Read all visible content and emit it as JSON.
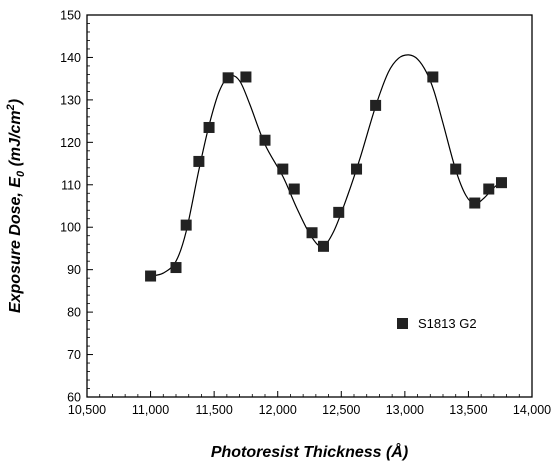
{
  "chart_data": {
    "type": "scatter",
    "title": "",
    "xlabel": "Photoresist Thickness (Å)",
    "ylabel_main": "Exposure Dose, E",
    "ylabel_sub": "0",
    "ylabel_unit_open": " (mJ/cm",
    "ylabel_unit_sup": "2",
    "ylabel_unit_close": ")",
    "xlim": [
      10500,
      14000
    ],
    "ylim": [
      60,
      150
    ],
    "x_ticks": [
      10500,
      11000,
      11500,
      12000,
      12500,
      13000,
      13500,
      14000
    ],
    "x_tick_labels": [
      "10,500",
      "11,000",
      "11,500",
      "12,000",
      "12,500",
      "13,000",
      "13,500",
      "14,000"
    ],
    "y_ticks": [
      60,
      70,
      80,
      90,
      100,
      110,
      120,
      130,
      140,
      150
    ],
    "y_tick_labels": [
      "60",
      "70",
      "80",
      "90",
      "100",
      "110",
      "120",
      "130",
      "140",
      "150"
    ],
    "grid": false,
    "legend_position": "center-right",
    "series": [
      {
        "name": "S1813 G2",
        "marker": "square",
        "color": "#222222",
        "points": [
          {
            "x": 11000,
            "y": 88.5
          },
          {
            "x": 11200,
            "y": 90.5
          },
          {
            "x": 11280,
            "y": 100.5
          },
          {
            "x": 11380,
            "y": 115.5
          },
          {
            "x": 11460,
            "y": 123.5
          },
          {
            "x": 11610,
            "y": 135.2
          },
          {
            "x": 11750,
            "y": 135.4
          },
          {
            "x": 11900,
            "y": 120.5
          },
          {
            "x": 12040,
            "y": 113.7
          },
          {
            "x": 12130,
            "y": 109.0
          },
          {
            "x": 12270,
            "y": 98.7
          },
          {
            "x": 12360,
            "y": 95.5
          },
          {
            "x": 12480,
            "y": 103.5
          },
          {
            "x": 12620,
            "y": 113.7
          },
          {
            "x": 12770,
            "y": 128.7
          },
          {
            "x": 13220,
            "y": 135.4
          },
          {
            "x": 13400,
            "y": 113.7
          },
          {
            "x": 13550,
            "y": 105.7
          },
          {
            "x": 13660,
            "y": 109.0
          },
          {
            "x": 13760,
            "y": 110.5
          }
        ]
      }
    ],
    "fit_curve": [
      {
        "x": 11000,
        "y": 88.5
      },
      {
        "x": 11100,
        "y": 89.2
      },
      {
        "x": 11200,
        "y": 92.0
      },
      {
        "x": 11280,
        "y": 99.0
      },
      {
        "x": 11380,
        "y": 113.5
      },
      {
        "x": 11460,
        "y": 124.0
      },
      {
        "x": 11540,
        "y": 132.0
      },
      {
        "x": 11620,
        "y": 135.6
      },
      {
        "x": 11700,
        "y": 134.5
      },
      {
        "x": 11780,
        "y": 129.0
      },
      {
        "x": 11900,
        "y": 119.5
      },
      {
        "x": 12040,
        "y": 112.0
      },
      {
        "x": 12150,
        "y": 104.5
      },
      {
        "x": 12260,
        "y": 98.0
      },
      {
        "x": 12350,
        "y": 95.5
      },
      {
        "x": 12440,
        "y": 99.0
      },
      {
        "x": 12550,
        "y": 107.5
      },
      {
        "x": 12650,
        "y": 116.5
      },
      {
        "x": 12770,
        "y": 128.5
      },
      {
        "x": 12870,
        "y": 136.5
      },
      {
        "x": 12950,
        "y": 139.8
      },
      {
        "x": 13030,
        "y": 140.6
      },
      {
        "x": 13100,
        "y": 139.6
      },
      {
        "x": 13170,
        "y": 136.5
      },
      {
        "x": 13230,
        "y": 132.0
      },
      {
        "x": 13300,
        "y": 124.5
      },
      {
        "x": 13400,
        "y": 113.5
      },
      {
        "x": 13480,
        "y": 107.5
      },
      {
        "x": 13550,
        "y": 105.5
      },
      {
        "x": 13620,
        "y": 106.8
      },
      {
        "x": 13700,
        "y": 109.3
      },
      {
        "x": 13760,
        "y": 110.8
      }
    ]
  }
}
